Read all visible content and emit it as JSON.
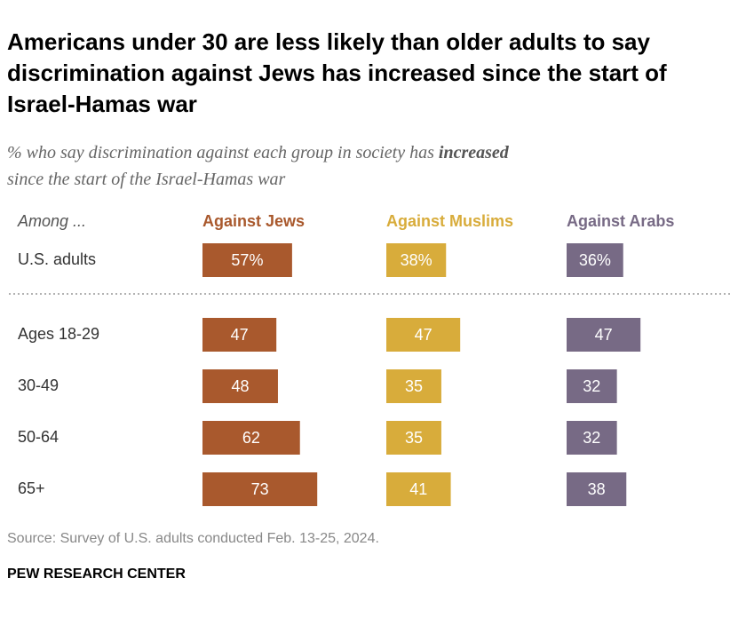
{
  "chart_data": {
    "type": "bar",
    "title": "Americans under 30 are less likely than older adults to say discrimination against Jews has increased since the start of Israel-Hamas war",
    "subtitle": [
      "% who say discrimination against each group in society has ",
      "increased",
      "since the start of the Israel-Hamas war"
    ],
    "row_header": "Among ...",
    "categories": [
      "U.S. adults",
      "Ages 18-29",
      "30-49",
      "50-64",
      "65+"
    ],
    "series": [
      {
        "name": "Against Jews",
        "color": "#a9592d",
        "values": [
          57,
          47,
          48,
          62,
          73
        ],
        "value_labels": [
          "57%",
          "47",
          "48",
          "62",
          "73"
        ]
      },
      {
        "name": "Against Muslims",
        "color": "#d8ac3b",
        "values": [
          38,
          47,
          35,
          35,
          41
        ],
        "value_labels": [
          "38%",
          "47",
          "35",
          "35",
          "41"
        ]
      },
      {
        "name": "Against Arabs",
        "color": "#776a85",
        "values": [
          36,
          47,
          32,
          32,
          38
        ],
        "value_labels": [
          "36%",
          "47",
          "32",
          "32",
          "38"
        ]
      }
    ],
    "source": "Source: Survey of U.S. adults conducted Feb. 13-25, 2024.",
    "credit": "PEW RESEARCH CENTER"
  }
}
